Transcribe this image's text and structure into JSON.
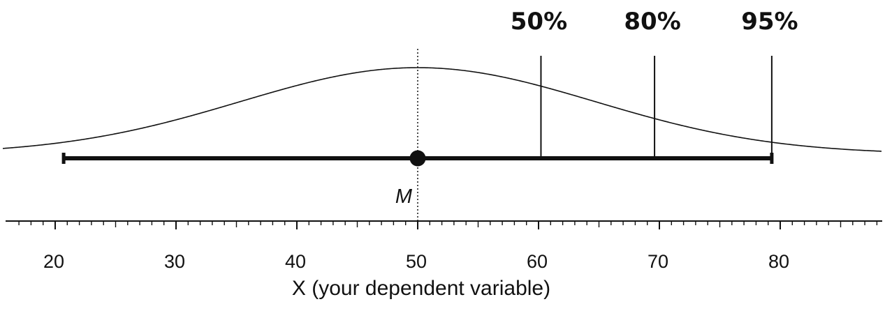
{
  "chart_data": {
    "type": "line",
    "title": "",
    "xlabel": "X (your dependent variable)",
    "ylabel": "",
    "xlim": [
      16.5,
      88
    ],
    "grid": false,
    "x_ticks": [
      20,
      30,
      40,
      50,
      60,
      70,
      80
    ],
    "x_tick_labels": [
      "20",
      "30",
      "40",
      "50",
      "60",
      "70",
      "80"
    ],
    "minor_tick_step": 1,
    "distribution": {
      "name": "",
      "kind": "normal",
      "mean": 50,
      "sd": 14.7
    },
    "interval": {
      "mean": 50,
      "lower": 20.7,
      "upper": 79.3
    },
    "mean_marker": {
      "x": 50,
      "label": "M",
      "line_style": "dotted"
    },
    "percentile_lines": [
      {
        "x": 60.2,
        "label": "50%"
      },
      {
        "x": 69.6,
        "label": "80%"
      },
      {
        "x": 79.3,
        "label": "95%"
      }
    ],
    "colors": {
      "ink": "#111111",
      "background": "#ffffff"
    }
  }
}
